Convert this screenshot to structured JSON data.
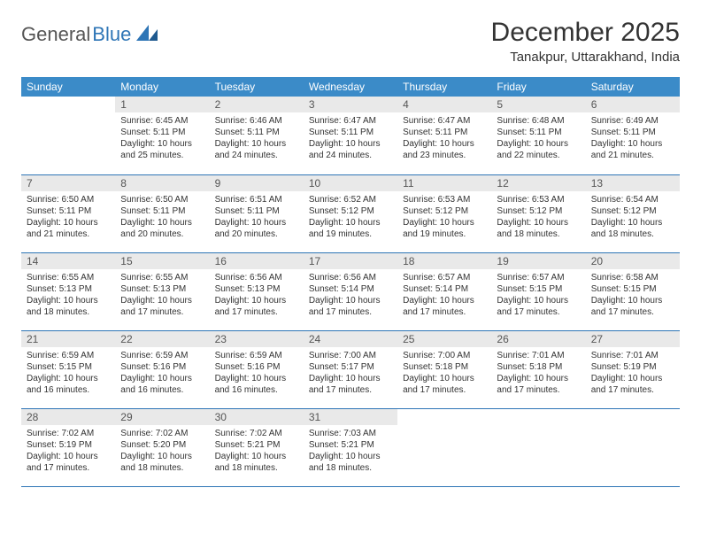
{
  "logo": {
    "text1": "General",
    "text2": "Blue",
    "icon_color": "#2e75b6"
  },
  "header": {
    "title": "December 2025",
    "location": "Tanakpur, Uttarakhand, India"
  },
  "colors": {
    "header_bg": "#3b8bc8",
    "header_text": "#ffffff",
    "daynum_bg": "#e9e9e9",
    "rule": "#2e75b6",
    "body_text": "#333333"
  },
  "typography": {
    "title_fontsize": 30,
    "location_fontsize": 15,
    "dayheader_fontsize": 12,
    "daynum_fontsize": 12,
    "body_fontsize": 10
  },
  "day_headers": [
    "Sunday",
    "Monday",
    "Tuesday",
    "Wednesday",
    "Thursday",
    "Friday",
    "Saturday"
  ],
  "weeks": [
    [
      null,
      {
        "n": "1",
        "sunrise": "6:45 AM",
        "sunset": "5:11 PM",
        "daylight": "10 hours and 25 minutes."
      },
      {
        "n": "2",
        "sunrise": "6:46 AM",
        "sunset": "5:11 PM",
        "daylight": "10 hours and 24 minutes."
      },
      {
        "n": "3",
        "sunrise": "6:47 AM",
        "sunset": "5:11 PM",
        "daylight": "10 hours and 24 minutes."
      },
      {
        "n": "4",
        "sunrise": "6:47 AM",
        "sunset": "5:11 PM",
        "daylight": "10 hours and 23 minutes."
      },
      {
        "n": "5",
        "sunrise": "6:48 AM",
        "sunset": "5:11 PM",
        "daylight": "10 hours and 22 minutes."
      },
      {
        "n": "6",
        "sunrise": "6:49 AM",
        "sunset": "5:11 PM",
        "daylight": "10 hours and 21 minutes."
      }
    ],
    [
      {
        "n": "7",
        "sunrise": "6:50 AM",
        "sunset": "5:11 PM",
        "daylight": "10 hours and 21 minutes."
      },
      {
        "n": "8",
        "sunrise": "6:50 AM",
        "sunset": "5:11 PM",
        "daylight": "10 hours and 20 minutes."
      },
      {
        "n": "9",
        "sunrise": "6:51 AM",
        "sunset": "5:11 PM",
        "daylight": "10 hours and 20 minutes."
      },
      {
        "n": "10",
        "sunrise": "6:52 AM",
        "sunset": "5:12 PM",
        "daylight": "10 hours and 19 minutes."
      },
      {
        "n": "11",
        "sunrise": "6:53 AM",
        "sunset": "5:12 PM",
        "daylight": "10 hours and 19 minutes."
      },
      {
        "n": "12",
        "sunrise": "6:53 AM",
        "sunset": "5:12 PM",
        "daylight": "10 hours and 18 minutes."
      },
      {
        "n": "13",
        "sunrise": "6:54 AM",
        "sunset": "5:12 PM",
        "daylight": "10 hours and 18 minutes."
      }
    ],
    [
      {
        "n": "14",
        "sunrise": "6:55 AM",
        "sunset": "5:13 PM",
        "daylight": "10 hours and 18 minutes."
      },
      {
        "n": "15",
        "sunrise": "6:55 AM",
        "sunset": "5:13 PM",
        "daylight": "10 hours and 17 minutes."
      },
      {
        "n": "16",
        "sunrise": "6:56 AM",
        "sunset": "5:13 PM",
        "daylight": "10 hours and 17 minutes."
      },
      {
        "n": "17",
        "sunrise": "6:56 AM",
        "sunset": "5:14 PM",
        "daylight": "10 hours and 17 minutes."
      },
      {
        "n": "18",
        "sunrise": "6:57 AM",
        "sunset": "5:14 PM",
        "daylight": "10 hours and 17 minutes."
      },
      {
        "n": "19",
        "sunrise": "6:57 AM",
        "sunset": "5:15 PM",
        "daylight": "10 hours and 17 minutes."
      },
      {
        "n": "20",
        "sunrise": "6:58 AM",
        "sunset": "5:15 PM",
        "daylight": "10 hours and 17 minutes."
      }
    ],
    [
      {
        "n": "21",
        "sunrise": "6:59 AM",
        "sunset": "5:15 PM",
        "daylight": "10 hours and 16 minutes."
      },
      {
        "n": "22",
        "sunrise": "6:59 AM",
        "sunset": "5:16 PM",
        "daylight": "10 hours and 16 minutes."
      },
      {
        "n": "23",
        "sunrise": "6:59 AM",
        "sunset": "5:16 PM",
        "daylight": "10 hours and 16 minutes."
      },
      {
        "n": "24",
        "sunrise": "7:00 AM",
        "sunset": "5:17 PM",
        "daylight": "10 hours and 17 minutes."
      },
      {
        "n": "25",
        "sunrise": "7:00 AM",
        "sunset": "5:18 PM",
        "daylight": "10 hours and 17 minutes."
      },
      {
        "n": "26",
        "sunrise": "7:01 AM",
        "sunset": "5:18 PM",
        "daylight": "10 hours and 17 minutes."
      },
      {
        "n": "27",
        "sunrise": "7:01 AM",
        "sunset": "5:19 PM",
        "daylight": "10 hours and 17 minutes."
      }
    ],
    [
      {
        "n": "28",
        "sunrise": "7:02 AM",
        "sunset": "5:19 PM",
        "daylight": "10 hours and 17 minutes."
      },
      {
        "n": "29",
        "sunrise": "7:02 AM",
        "sunset": "5:20 PM",
        "daylight": "10 hours and 18 minutes."
      },
      {
        "n": "30",
        "sunrise": "7:02 AM",
        "sunset": "5:21 PM",
        "daylight": "10 hours and 18 minutes."
      },
      {
        "n": "31",
        "sunrise": "7:03 AM",
        "sunset": "5:21 PM",
        "daylight": "10 hours and 18 minutes."
      },
      null,
      null,
      null
    ]
  ],
  "labels": {
    "sunrise": "Sunrise:",
    "sunset": "Sunset:",
    "daylight": "Daylight:"
  }
}
